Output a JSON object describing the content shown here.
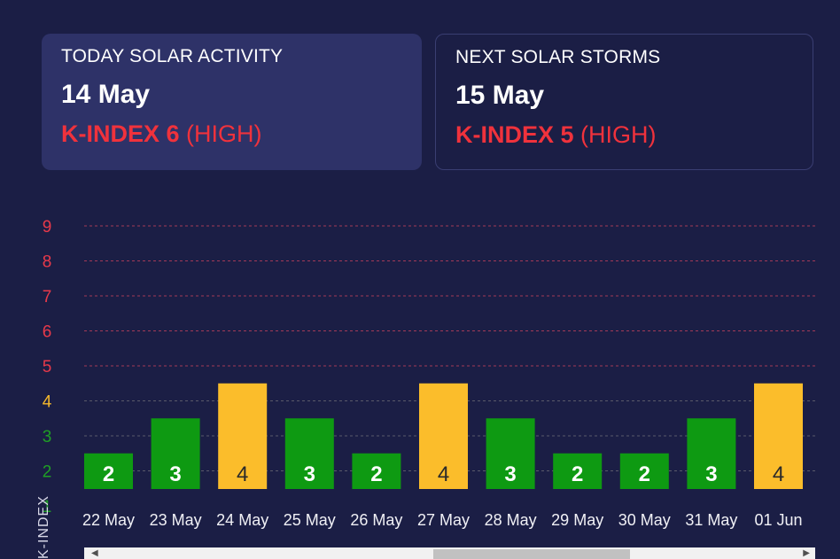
{
  "today": {
    "title": "TODAY SOLAR ACTIVITY",
    "date": "14 May",
    "kindex_label": "K-INDEX 6",
    "level": "(HIGH)"
  },
  "next": {
    "title": "NEXT SOLAR STORMS",
    "date": "15 May",
    "kindex_label": "K-INDEX 5",
    "level": "(HIGH)"
  },
  "chart_data": {
    "type": "bar",
    "categories": [
      "22 May",
      "23 May",
      "24 May",
      "25 May",
      "26 May",
      "27 May",
      "28 May",
      "29 May",
      "30 May",
      "31 May",
      "01 Jun"
    ],
    "values": [
      2,
      3,
      4,
      3,
      2,
      4,
      3,
      2,
      2,
      3,
      4
    ],
    "y_ticks": [
      1,
      2,
      3,
      4,
      5,
      6,
      7,
      8,
      9
    ],
    "ylim": [
      1,
      9
    ],
    "ylabel": "K-INDEX",
    "grid": true,
    "colors": {
      "low": "#0e9a12",
      "medium": "#fbbd2b",
      "high": "#e8394a",
      "tick_low": "#1fa025",
      "tick_medium": "#f5b82b",
      "tick_high": "#e8394a"
    }
  },
  "scrollbar": {
    "left_arrow": "◀",
    "right_arrow": "▶"
  }
}
